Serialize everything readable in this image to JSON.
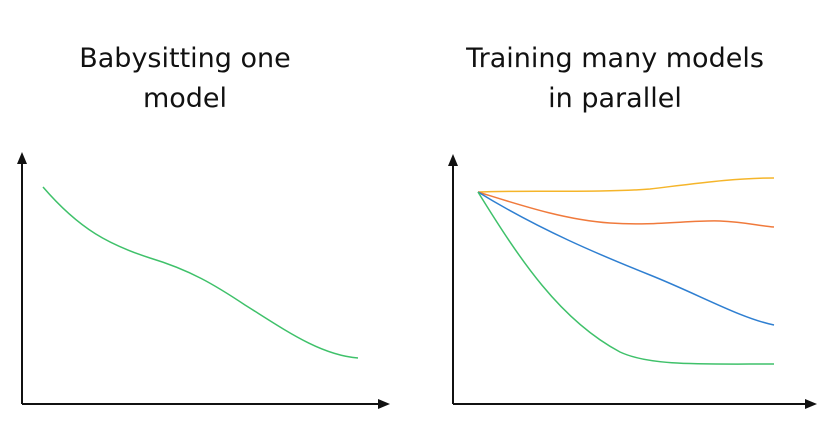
{
  "panels": [
    {
      "title_lines": [
        "Babysitting one",
        "model"
      ],
      "curves": [
        {
          "color": "#3fc16a"
        }
      ]
    },
    {
      "title_lines": [
        "Training many models",
        "in parallel"
      ],
      "curves": [
        {
          "color": "#f5b52a"
        },
        {
          "color": "#f07a3c"
        },
        {
          "color": "#2f7fd1"
        },
        {
          "color": "#3fc16a"
        }
      ]
    }
  ],
  "axis_color": "#111111"
}
